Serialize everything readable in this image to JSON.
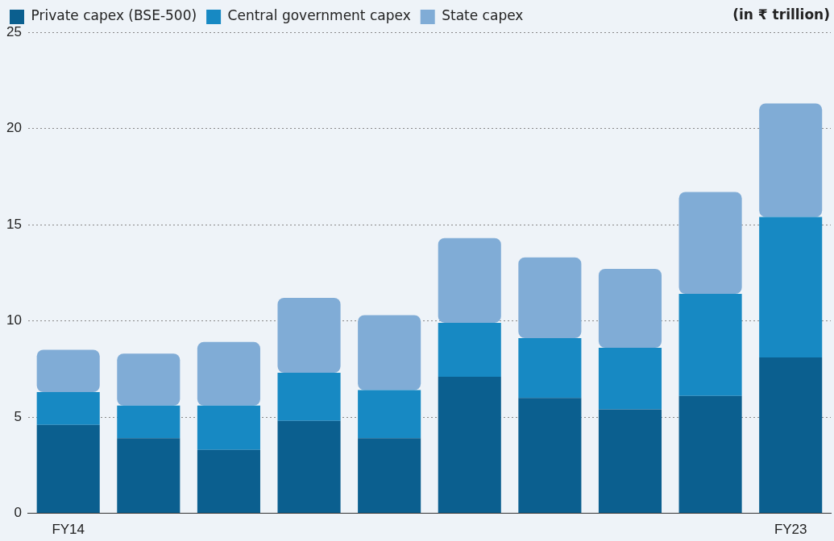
{
  "chart_data": {
    "type": "bar",
    "stacked": true,
    "categories": [
      "FY14",
      null,
      null,
      null,
      null,
      null,
      null,
      null,
      null,
      "FY23"
    ],
    "series": [
      {
        "name": "Private capex (BSE-500)",
        "color": "#0b5f8f",
        "values": [
          4.6,
          3.9,
          3.3,
          4.8,
          3.9,
          7.1,
          6.0,
          5.4,
          6.1,
          8.1
        ]
      },
      {
        "name": "Central government capex",
        "color": "#1789c3",
        "values": [
          1.7,
          1.7,
          2.3,
          2.5,
          2.5,
          2.8,
          3.1,
          3.2,
          5.3,
          7.3
        ]
      },
      {
        "name": "State capex",
        "color": "#80acd6",
        "values": [
          2.2,
          2.7,
          3.3,
          3.9,
          3.9,
          4.4,
          4.2,
          4.1,
          5.3,
          5.9
        ]
      }
    ],
    "ylim": [
      0,
      25
    ],
    "yticks": [
      0,
      5,
      10,
      15,
      20,
      25
    ],
    "grid": "y",
    "legend": "top left",
    "annotations": [
      "(in ₹ trillion)"
    ]
  }
}
